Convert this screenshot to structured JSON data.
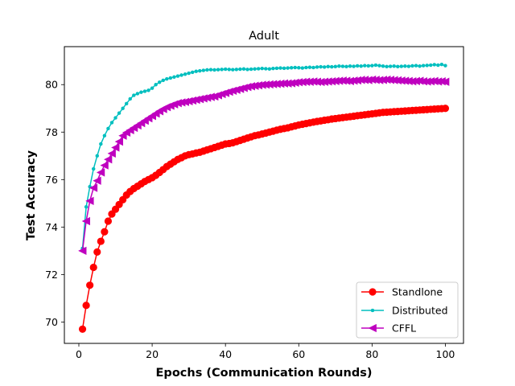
{
  "chart_data": {
    "type": "line",
    "title": "Adult",
    "xlabel": "Epochs (Communication Rounds)",
    "ylabel": "Test Accuracy",
    "xlim": [
      -3.95,
      104.95
    ],
    "ylim": [
      69.1,
      81.6
    ],
    "xticks": [
      0,
      20,
      40,
      60,
      80,
      100
    ],
    "yticks": [
      70,
      72,
      74,
      76,
      78,
      80
    ],
    "grid": false,
    "legend_position": "lower-right",
    "series": [
      {
        "name": "Standlone",
        "color": "#ff0000",
        "marker": "circle",
        "x": [
          1,
          2,
          3,
          4,
          5,
          6,
          7,
          8,
          9,
          10,
          11,
          12,
          13,
          14,
          15,
          16,
          17,
          18,
          19,
          20,
          21,
          22,
          23,
          24,
          25,
          26,
          27,
          28,
          29,
          30,
          31,
          32,
          33,
          34,
          35,
          36,
          37,
          38,
          39,
          40,
          41,
          42,
          43,
          44,
          45,
          46,
          47,
          48,
          49,
          50,
          51,
          52,
          53,
          54,
          55,
          56,
          57,
          58,
          59,
          60,
          61,
          62,
          63,
          64,
          65,
          66,
          67,
          68,
          69,
          70,
          71,
          72,
          73,
          74,
          75,
          76,
          77,
          78,
          79,
          80,
          81,
          82,
          83,
          84,
          85,
          86,
          87,
          88,
          89,
          90,
          91,
          92,
          93,
          94,
          95,
          96,
          97,
          98,
          99,
          100
        ],
        "y": [
          69.7,
          70.7,
          71.55,
          72.3,
          72.95,
          73.4,
          73.8,
          74.25,
          74.55,
          74.75,
          74.95,
          75.15,
          75.35,
          75.5,
          75.62,
          75.72,
          75.82,
          75.92,
          76.0,
          76.08,
          76.18,
          76.3,
          76.42,
          76.55,
          76.65,
          76.75,
          76.85,
          76.92,
          77.0,
          77.05,
          77.08,
          77.12,
          77.15,
          77.2,
          77.25,
          77.3,
          77.35,
          77.4,
          77.45,
          77.5,
          77.52,
          77.55,
          77.6,
          77.65,
          77.7,
          77.75,
          77.8,
          77.85,
          77.88,
          77.92,
          77.96,
          78.0,
          78.04,
          78.08,
          78.12,
          78.15,
          78.18,
          78.22,
          78.26,
          78.3,
          78.33,
          78.36,
          78.39,
          78.42,
          78.45,
          78.47,
          78.5,
          78.52,
          78.55,
          78.57,
          78.59,
          78.61,
          78.63,
          78.65,
          78.67,
          78.69,
          78.71,
          78.73,
          78.75,
          78.77,
          78.79,
          78.81,
          78.83,
          78.84,
          78.85,
          78.86,
          78.87,
          78.88,
          78.89,
          78.9,
          78.91,
          78.92,
          78.93,
          78.94,
          78.95,
          78.96,
          78.97,
          78.98,
          78.99,
          79.0
        ]
      },
      {
        "name": "Distributed",
        "color": "#00bfbf",
        "marker": "point",
        "x": [
          1,
          2,
          3,
          4,
          5,
          6,
          7,
          8,
          9,
          10,
          11,
          12,
          13,
          14,
          15,
          16,
          17,
          18,
          19,
          20,
          21,
          22,
          23,
          24,
          25,
          26,
          27,
          28,
          29,
          30,
          31,
          32,
          33,
          34,
          35,
          36,
          37,
          38,
          39,
          40,
          41,
          42,
          43,
          44,
          45,
          46,
          47,
          48,
          49,
          50,
          51,
          52,
          53,
          54,
          55,
          56,
          57,
          58,
          59,
          60,
          61,
          62,
          63,
          64,
          65,
          66,
          67,
          68,
          69,
          70,
          71,
          72,
          73,
          74,
          75,
          76,
          77,
          78,
          79,
          80,
          81,
          82,
          83,
          84,
          85,
          86,
          87,
          88,
          89,
          90,
          91,
          92,
          93,
          94,
          95,
          96,
          97,
          98,
          99,
          100
        ],
        "y": [
          73.1,
          74.85,
          75.7,
          76.45,
          77.0,
          77.5,
          77.85,
          78.15,
          78.4,
          78.6,
          78.8,
          79.0,
          79.2,
          79.4,
          79.55,
          79.62,
          79.68,
          79.72,
          79.76,
          79.85,
          80.0,
          80.1,
          80.18,
          80.24,
          80.28,
          80.32,
          80.36,
          80.4,
          80.44,
          80.48,
          80.52,
          80.56,
          80.58,
          80.6,
          80.62,
          80.63,
          80.62,
          80.63,
          80.64,
          80.65,
          80.64,
          80.63,
          80.64,
          80.65,
          80.66,
          80.64,
          80.65,
          80.66,
          80.67,
          80.68,
          80.67,
          80.66,
          80.68,
          80.69,
          80.7,
          80.69,
          80.7,
          80.71,
          80.72,
          80.71,
          80.7,
          80.72,
          80.73,
          80.72,
          80.74,
          80.75,
          80.74,
          80.76,
          80.75,
          80.76,
          80.78,
          80.77,
          80.76,
          80.78,
          80.77,
          80.79,
          80.78,
          80.8,
          80.79,
          80.8,
          80.82,
          80.8,
          80.78,
          80.76,
          80.77,
          80.78,
          80.76,
          80.77,
          80.78,
          80.77,
          80.79,
          80.8,
          80.78,
          80.8,
          80.81,
          80.82,
          80.84,
          80.82,
          80.85,
          80.8
        ]
      },
      {
        "name": "CFFL",
        "color": "#bf00bf",
        "marker": "triangle-left",
        "x": [
          1,
          2,
          3,
          4,
          5,
          6,
          7,
          8,
          9,
          10,
          11,
          12,
          13,
          14,
          15,
          16,
          17,
          18,
          19,
          20,
          21,
          22,
          23,
          24,
          25,
          26,
          27,
          28,
          29,
          30,
          31,
          32,
          33,
          34,
          35,
          36,
          37,
          38,
          39,
          40,
          41,
          42,
          43,
          44,
          45,
          46,
          47,
          48,
          49,
          50,
          51,
          52,
          53,
          54,
          55,
          56,
          57,
          58,
          59,
          60,
          61,
          62,
          63,
          64,
          65,
          66,
          67,
          68,
          69,
          70,
          71,
          72,
          73,
          74,
          75,
          76,
          77,
          78,
          79,
          80,
          81,
          82,
          83,
          84,
          85,
          86,
          87,
          88,
          89,
          90,
          91,
          92,
          93,
          94,
          95,
          96,
          97,
          98,
          99,
          100
        ],
        "y": [
          73.0,
          74.25,
          75.1,
          75.65,
          75.95,
          76.3,
          76.6,
          76.85,
          77.1,
          77.35,
          77.6,
          77.85,
          77.98,
          78.08,
          78.18,
          78.28,
          78.38,
          78.48,
          78.58,
          78.68,
          78.78,
          78.88,
          78.97,
          79.05,
          79.11,
          79.17,
          79.22,
          79.25,
          79.27,
          79.3,
          79.33,
          79.36,
          79.39,
          79.42,
          79.45,
          79.48,
          79.5,
          79.55,
          79.6,
          79.65,
          79.7,
          79.74,
          79.78,
          79.82,
          79.86,
          79.9,
          79.93,
          79.95,
          79.97,
          79.99,
          80.0,
          80.01,
          80.02,
          80.03,
          80.04,
          80.05,
          80.05,
          80.06,
          80.08,
          80.1,
          80.11,
          80.12,
          80.12,
          80.13,
          80.12,
          80.11,
          80.12,
          80.13,
          80.14,
          80.15,
          80.16,
          80.17,
          80.16,
          80.15,
          80.17,
          80.18,
          80.2,
          80.2,
          80.19,
          80.21,
          80.2,
          80.19,
          80.2,
          80.21,
          80.2,
          80.19,
          80.18,
          80.17,
          80.16,
          80.15,
          80.14,
          80.15,
          80.16,
          80.14,
          80.13,
          80.14,
          80.15,
          80.13,
          80.14,
          80.12
        ]
      }
    ]
  }
}
